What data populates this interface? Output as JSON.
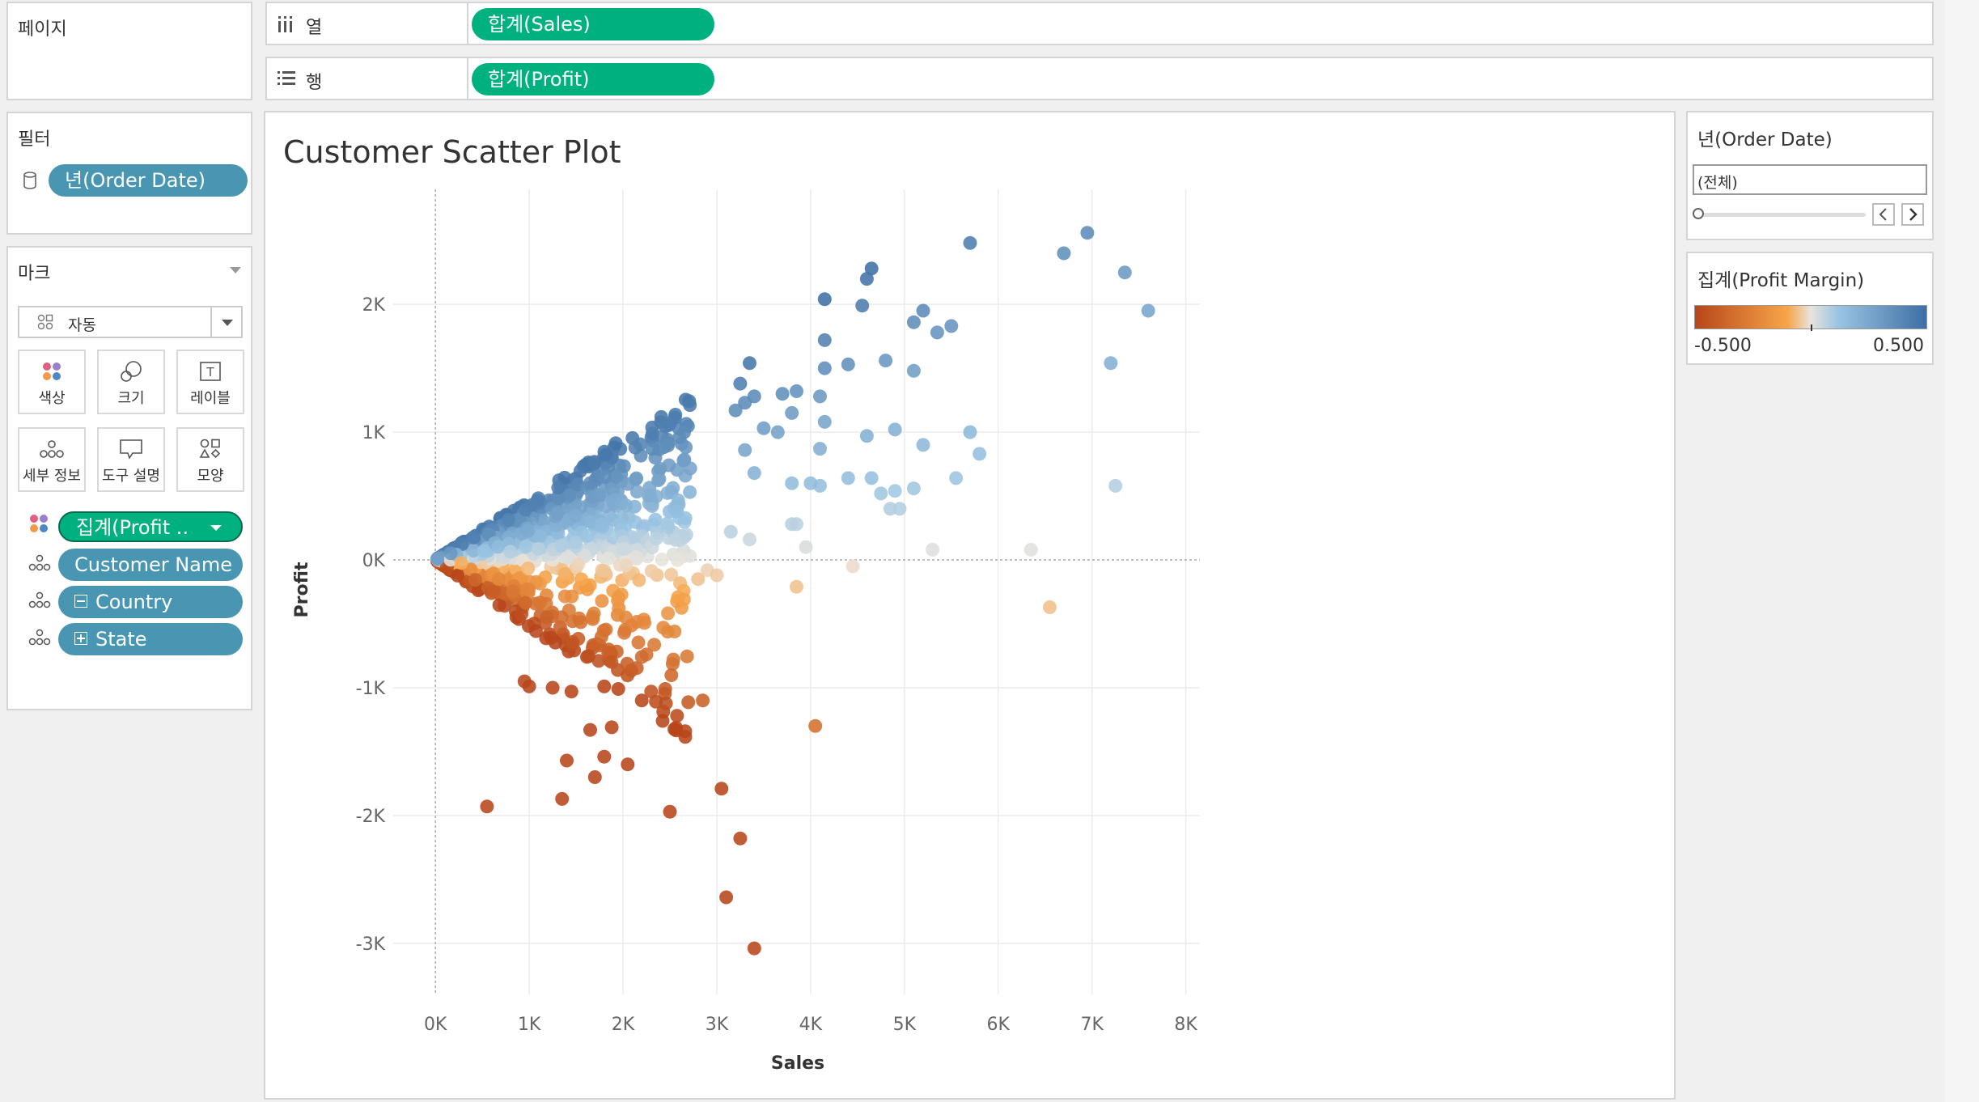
{
  "pages": {
    "title": "페이지"
  },
  "columns_shelf": {
    "label": "열",
    "pill": "합계(Sales)"
  },
  "rows_shelf": {
    "label": "행",
    "pill": "합계(Profit)"
  },
  "filters": {
    "title": "필터",
    "pill": "년(Order Date)"
  },
  "marks": {
    "title": "마크",
    "type_value": "자동",
    "buttons": [
      "색상",
      "크기",
      "레이블",
      "세부 정보",
      "도구 설명",
      "모양"
    ],
    "fields": [
      {
        "label": "집계(Profit ..",
        "type": "color"
      },
      {
        "label": "Customer Name",
        "type": "detail"
      },
      {
        "label": "Country",
        "type": "detail"
      },
      {
        "label": "State",
        "type": "detail"
      }
    ]
  },
  "date_filter_card": {
    "title": "년(Order Date)",
    "value": "(전체)"
  },
  "legend_card": {
    "title": "집계(Profit Margin)",
    "min_label": "-0.500",
    "max_label": "0.500",
    "colors": [
      "#b7461a",
      "#f7a54a",
      "#e8e3dc",
      "#9ac4e2",
      "#3d6fa4"
    ]
  },
  "chart_data": {
    "type": "scatter",
    "title": "Customer Scatter Plot",
    "xlabel": "Sales",
    "ylabel": "Profit",
    "xlim": [
      -450,
      8150
    ],
    "ylim": [
      -3400,
      2900
    ],
    "xticks": [
      "0K",
      "1K",
      "2K",
      "3K",
      "4K",
      "5K",
      "6K",
      "7K",
      "8K"
    ],
    "yticks": [
      "2K",
      "1K",
      "0K",
      "-1K",
      "-2K",
      "-3K"
    ],
    "color_encoding": "profit_margin",
    "points": [
      [
        5700,
        2480
      ],
      [
        6950,
        2560
      ],
      [
        6700,
        2400
      ],
      [
        7350,
        2250
      ],
      [
        7600,
        1950
      ],
      [
        4650,
        2280
      ],
      [
        4600,
        2200
      ],
      [
        4150,
        2040
      ],
      [
        4550,
        1990
      ],
      [
        5200,
        1950
      ],
      [
        5100,
        1860
      ],
      [
        5500,
        1830
      ],
      [
        5350,
        1780
      ],
      [
        4150,
        1720
      ],
      [
        7200,
        1540
      ],
      [
        4800,
        1560
      ],
      [
        4400,
        1530
      ],
      [
        4150,
        1500
      ],
      [
        5100,
        1480
      ],
      [
        3350,
        1540
      ],
      [
        3250,
        1380
      ],
      [
        3400,
        1280
      ],
      [
        3700,
        1300
      ],
      [
        3850,
        1320
      ],
      [
        4100,
        1280
      ],
      [
        3800,
        1150
      ],
      [
        4150,
        1080
      ],
      [
        3300,
        1230
      ],
      [
        3200,
        1170
      ],
      [
        3500,
        1030
      ],
      [
        3650,
        1000
      ],
      [
        4100,
        870
      ],
      [
        4600,
        970
      ],
      [
        4900,
        1020
      ],
      [
        5200,
        900
      ],
      [
        5700,
        1000
      ],
      [
        5800,
        830
      ],
      [
        4100,
        580
      ],
      [
        4400,
        640
      ],
      [
        4650,
        640
      ],
      [
        4900,
        540
      ],
      [
        5100,
        560
      ],
      [
        4000,
        600
      ],
      [
        5550,
        640
      ],
      [
        3400,
        680
      ],
      [
        3300,
        860
      ],
      [
        3800,
        600
      ],
      [
        4850,
        400
      ],
      [
        4950,
        400
      ],
      [
        4750,
        520
      ],
      [
        3800,
        280
      ],
      [
        3850,
        280
      ],
      [
        3950,
        100
      ],
      [
        3350,
        160
      ],
      [
        3150,
        220
      ],
      [
        7250,
        580
      ],
      [
        5300,
        80
      ],
      [
        6350,
        80
      ],
      [
        4450,
        -50
      ],
      [
        3850,
        -210
      ],
      [
        6550,
        -370
      ],
      [
        4050,
        -1300
      ],
      [
        550,
        -1930
      ],
      [
        1400,
        -1570
      ],
      [
        1350,
        -1870
      ],
      [
        1800,
        -1540
      ],
      [
        1700,
        -1700
      ],
      [
        2050,
        -1600
      ],
      [
        1650,
        -1330
      ],
      [
        1880,
        -1310
      ],
      [
        2500,
        -1970
      ],
      [
        3050,
        -1790
      ],
      [
        3250,
        -2180
      ],
      [
        3100,
        -2640
      ],
      [
        3400,
        -3040
      ],
      [
        2850,
        -1100
      ],
      [
        2200,
        -1100
      ],
      [
        2350,
        -1110
      ],
      [
        2450,
        -1010
      ],
      [
        2300,
        -1030
      ],
      [
        1800,
        -990
      ],
      [
        1950,
        -1010
      ],
      [
        1450,
        -1030
      ],
      [
        1250,
        -1000
      ],
      [
        1000,
        -990
      ],
      [
        950,
        -950
      ],
      [
        2550,
        -560
      ],
      [
        2250,
        -740
      ],
      [
        2200,
        -760
      ],
      [
        2650,
        -310
      ],
      [
        2800,
        -150
      ],
      [
        2900,
        -80
      ],
      [
        3000,
        -120
      ]
    ]
  }
}
